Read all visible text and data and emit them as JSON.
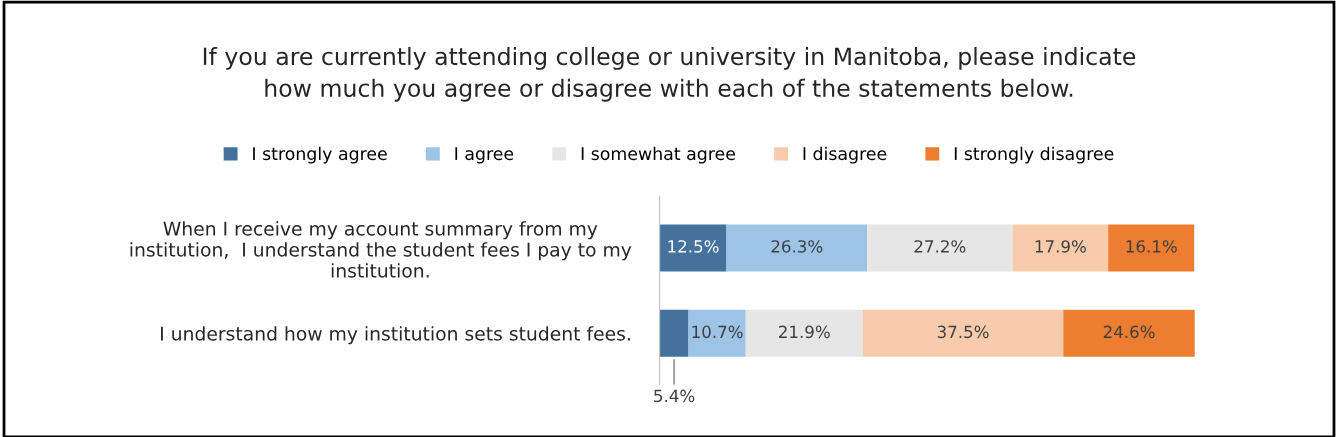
{
  "chart_data": {
    "type": "bar",
    "orientation": "horizontal",
    "stacked": true,
    "title": "If you are currently attending college or university in Manitoba, please indicate\nhow much you agree or disagree with each of the statements below.",
    "categories": [
      "When I receive my account summary from my\ninstitution,  I understand the student fees I pay to my\ninstitution.",
      "I understand how my institution sets student fees."
    ],
    "series": [
      {
        "name": "I strongly agree",
        "color": "#44729d",
        "values": [
          12.5,
          5.4
        ],
        "value_labels": [
          "12.5%",
          "5.4%"
        ]
      },
      {
        "name": "I agree",
        "color": "#9dc3e6",
        "values": [
          26.3,
          10.7
        ],
        "value_labels": [
          "26.3%",
          "10.7%"
        ]
      },
      {
        "name": "I somewhat agree",
        "color": "#e7e6e6",
        "values": [
          27.2,
          21.9
        ],
        "value_labels": [
          "27.2%",
          "21.9%"
        ]
      },
      {
        "name": "I disagree",
        "color": "#f8cbad",
        "values": [
          17.9,
          37.5
        ],
        "value_labels": [
          "17.9%",
          "37.5%"
        ]
      },
      {
        "name": "I strongly disagree",
        "color": "#ed7d31",
        "values": [
          16.1,
          24.6
        ],
        "value_labels": [
          "16.1%",
          "24.6%"
        ]
      }
    ],
    "legend": "top"
  }
}
